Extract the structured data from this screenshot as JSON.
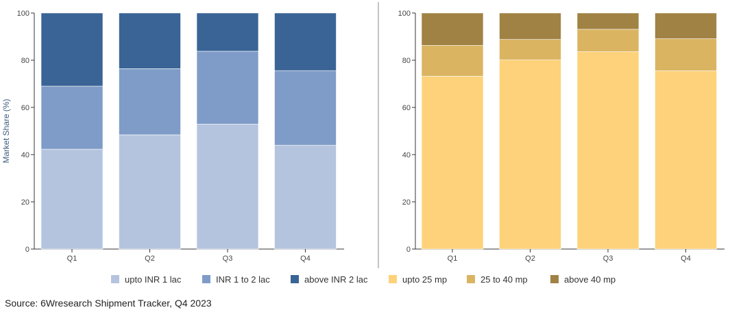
{
  "chart_data": [
    {
      "type": "bar",
      "stacked": true,
      "categories": [
        "Q1",
        "Q2",
        "Q3",
        "Q4"
      ],
      "series": [
        {
          "name": "upto INR 1 lac",
          "color": "#b5c4de",
          "values": [
            42.3,
            48.4,
            52.9,
            44.0
          ]
        },
        {
          "name": "INR 1 to 2 lac",
          "color": "#7f9cc8",
          "values": [
            26.7,
            28.0,
            30.9,
            31.6
          ]
        },
        {
          "name": "above INR 2 lac",
          "color": "#3a6496",
          "values": [
            31.0,
            23.6,
            16.2,
            24.4
          ]
        }
      ],
      "ylabel": "Market Share (%)",
      "ylim": [
        0,
        100
      ],
      "yticks": [
        0,
        20,
        40,
        60,
        80,
        100
      ],
      "grid": false
    },
    {
      "type": "bar",
      "stacked": true,
      "categories": [
        "Q1",
        "Q2",
        "Q3",
        "Q4"
      ],
      "series": [
        {
          "name": "upto 25 mp",
          "color": "#fdd27a",
          "values": [
            73.2,
            80.1,
            83.6,
            75.5
          ]
        },
        {
          "name": "25 to 40 mp",
          "color": "#dbb462",
          "values": [
            13.1,
            8.7,
            9.5,
            13.6
          ]
        },
        {
          "name": "above 40 mp",
          "color": "#a08244",
          "values": [
            13.7,
            11.2,
            6.9,
            10.9
          ]
        }
      ],
      "ylabel": "",
      "ylim": [
        0,
        100
      ],
      "yticks": [
        0,
        20,
        40,
        60,
        80,
        100
      ],
      "grid": false
    }
  ],
  "legend": {
    "placement": "bottom",
    "items": [
      {
        "label": "upto INR 1 lac",
        "color": "#b5c4de"
      },
      {
        "label": "INR 1 to 2 lac",
        "color": "#7f9cc8"
      },
      {
        "label": "above INR 2 lac",
        "color": "#3a6496"
      },
      {
        "label": "upto 25 mp",
        "color": "#fdd27a"
      },
      {
        "label": "25 to 40 mp",
        "color": "#dbb462"
      },
      {
        "label": "above 40 mp",
        "color": "#a08244"
      }
    ]
  },
  "source": "Source: 6Wresearch Shipment Tracker, Q4 2023"
}
